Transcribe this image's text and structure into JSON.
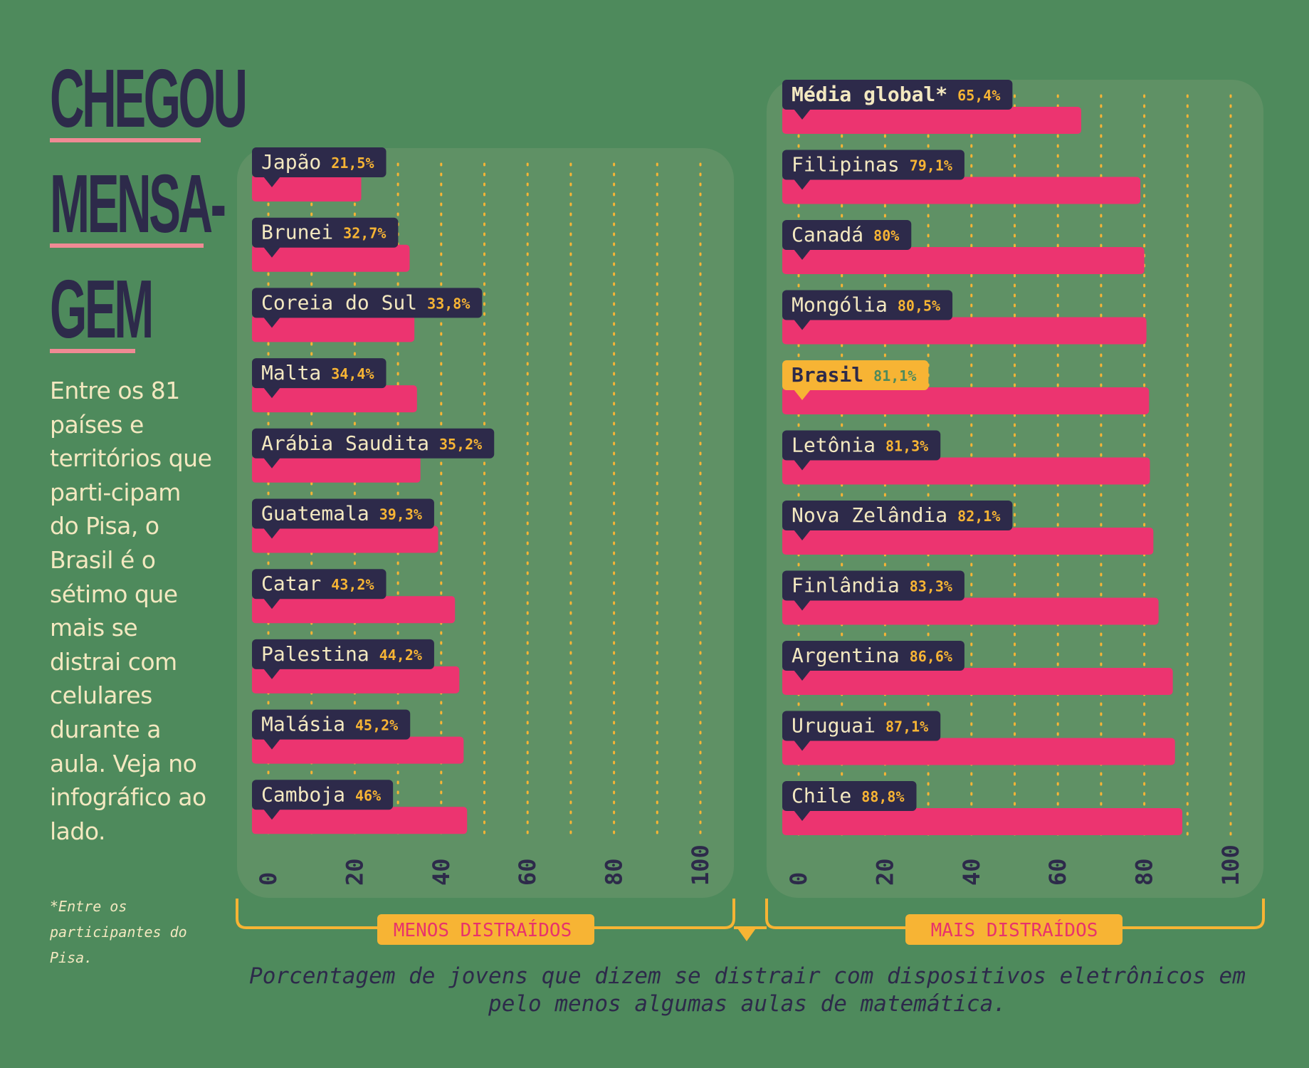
{
  "title": {
    "line1": "CHEGOU",
    "line2": "MENSA-",
    "line3": "GEM"
  },
  "intro": "Entre os 81 países e territórios que parti-cipam do Pisa, o Brasil é o sétimo que mais se distrai com celulares durante a aula. Veja no infográfico ao lado.",
  "footnote": "*Entre os participantes do Pisa.",
  "caption": "Porcentagem de jovens que dizem se distrair com dispositivos eletrônicos em pelo menos algumas aulas de matemática.",
  "colors": {
    "background": "#4e8a5c",
    "panel": "#5f9165",
    "bar": "#ec3470",
    "label_box": "#2d2a4a",
    "highlight_box": "#f7b434",
    "gridline": "#f7b434",
    "bracket": "#f7b434",
    "group_box": "#f7b434",
    "title": "#2d2a4a",
    "title_rule": "#f08a94",
    "cream_text": "#f3e8c0"
  },
  "chart_data": [
    {
      "type": "bar",
      "orientation": "horizontal",
      "group_label": "MENOS DISTRAÍDOS",
      "xlim": [
        0,
        100
      ],
      "ticks": [
        "0",
        "20",
        "40",
        "60",
        "80",
        "100"
      ],
      "bars": [
        {
          "name": "Japão",
          "value": 21.5,
          "label": "21,5%"
        },
        {
          "name": "Brunei",
          "value": 32.7,
          "label": "32,7%"
        },
        {
          "name": "Coreia do Sul",
          "value": 33.8,
          "label": "33,8%"
        },
        {
          "name": "Malta",
          "value": 34.4,
          "label": "34,4%"
        },
        {
          "name": "Arábia Saudita",
          "value": 35.2,
          "label": "35,2%"
        },
        {
          "name": "Guatemala",
          "value": 39.3,
          "label": "39,3%"
        },
        {
          "name": "Catar",
          "value": 43.2,
          "label": "43,2%"
        },
        {
          "name": "Palestina",
          "value": 44.2,
          "label": "44,2%"
        },
        {
          "name": "Malásia",
          "value": 45.2,
          "label": "45,2%"
        },
        {
          "name": "Camboja",
          "value": 46,
          "label": "46%"
        }
      ]
    },
    {
      "type": "bar",
      "orientation": "horizontal",
      "group_label": "MAIS DISTRAÍDOS",
      "xlim": [
        0,
        100
      ],
      "ticks": [
        "0",
        "20",
        "40",
        "60",
        "80",
        "100"
      ],
      "bars": [
        {
          "name": "Média global*",
          "value": 65.4,
          "label": "65,4%",
          "bold": true
        },
        {
          "name": "Filipinas",
          "value": 79.1,
          "label": "79,1%"
        },
        {
          "name": "Canadá",
          "value": 80,
          "label": "80%"
        },
        {
          "name": "Mongólia",
          "value": 80.5,
          "label": "80,5%"
        },
        {
          "name": "Brasil",
          "value": 81.1,
          "label": "81,1%",
          "highlight": true
        },
        {
          "name": "Letônia",
          "value": 81.3,
          "label": "81,3%"
        },
        {
          "name": "Nova Zelândia",
          "value": 82.1,
          "label": "82,1%"
        },
        {
          "name": "Finlândia",
          "value": 83.3,
          "label": "83,3%"
        },
        {
          "name": "Argentina",
          "value": 86.6,
          "label": "86,6%"
        },
        {
          "name": "Uruguai",
          "value": 87.1,
          "label": "87,1%"
        },
        {
          "name": "Chile",
          "value": 88.8,
          "label": "88,8%"
        }
      ]
    }
  ]
}
